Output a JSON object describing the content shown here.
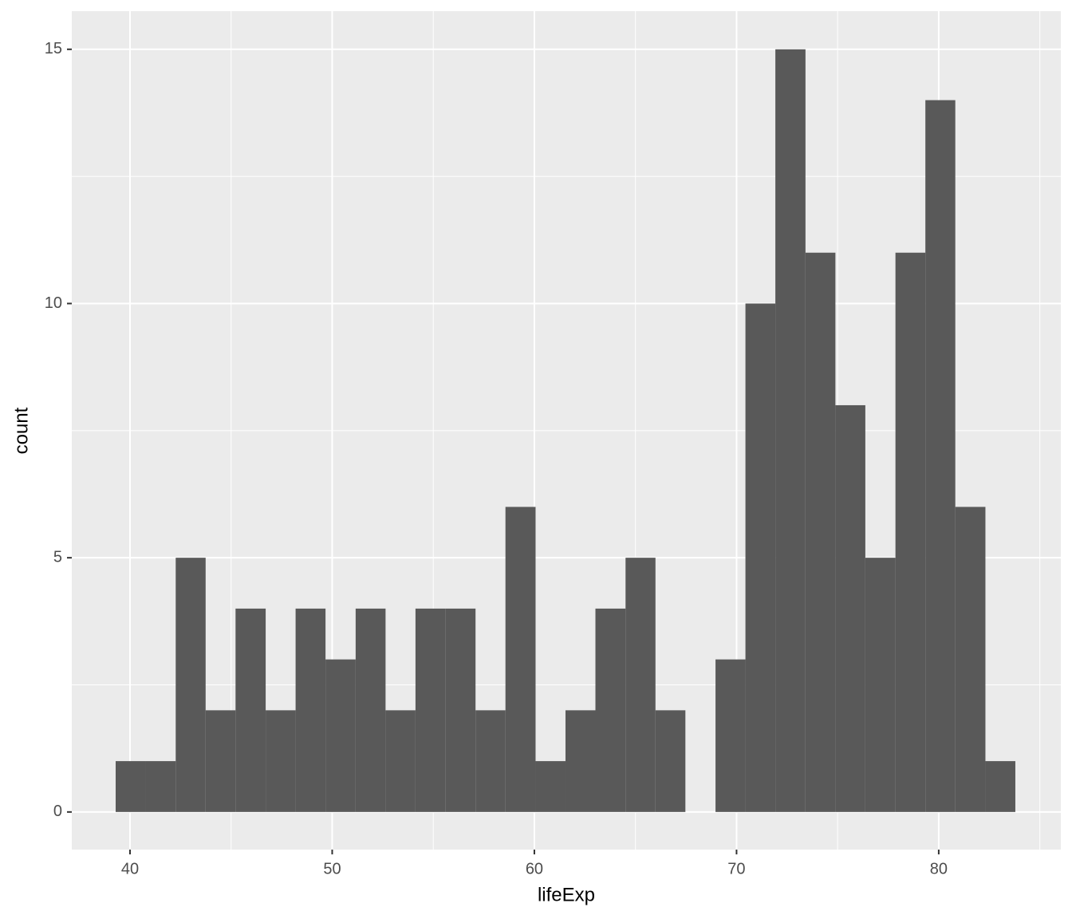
{
  "chart_data": {
    "type": "histogram",
    "x_label": "lifeExp",
    "y_label": "count",
    "bins": [
      39.29,
      40.77,
      42.26,
      43.74,
      45.22,
      46.71,
      48.19,
      49.67,
      51.16,
      52.64,
      54.12,
      55.61,
      57.09,
      58.57,
      60.06,
      61.54,
      63.02,
      64.51,
      65.99,
      67.47,
      68.96,
      70.44,
      71.92,
      73.41,
      74.89,
      76.37,
      77.86,
      79.34,
      80.82,
      82.31,
      83.79
    ],
    "values": [
      1,
      1,
      5,
      2,
      4,
      2,
      4,
      3,
      4,
      2,
      4,
      4,
      2,
      6,
      1,
      2,
      4,
      5,
      2,
      0,
      3,
      10,
      15,
      11,
      8,
      5,
      11,
      14,
      6,
      1
    ],
    "color": "#595959",
    "xlim": [
      37.12,
      86.04
    ],
    "xticks": [
      40,
      50,
      60,
      70,
      80
    ],
    "ylim": [
      -0.74,
      15.75
    ],
    "yticks": [
      0,
      5,
      10,
      15
    ],
    "grid": true
  }
}
